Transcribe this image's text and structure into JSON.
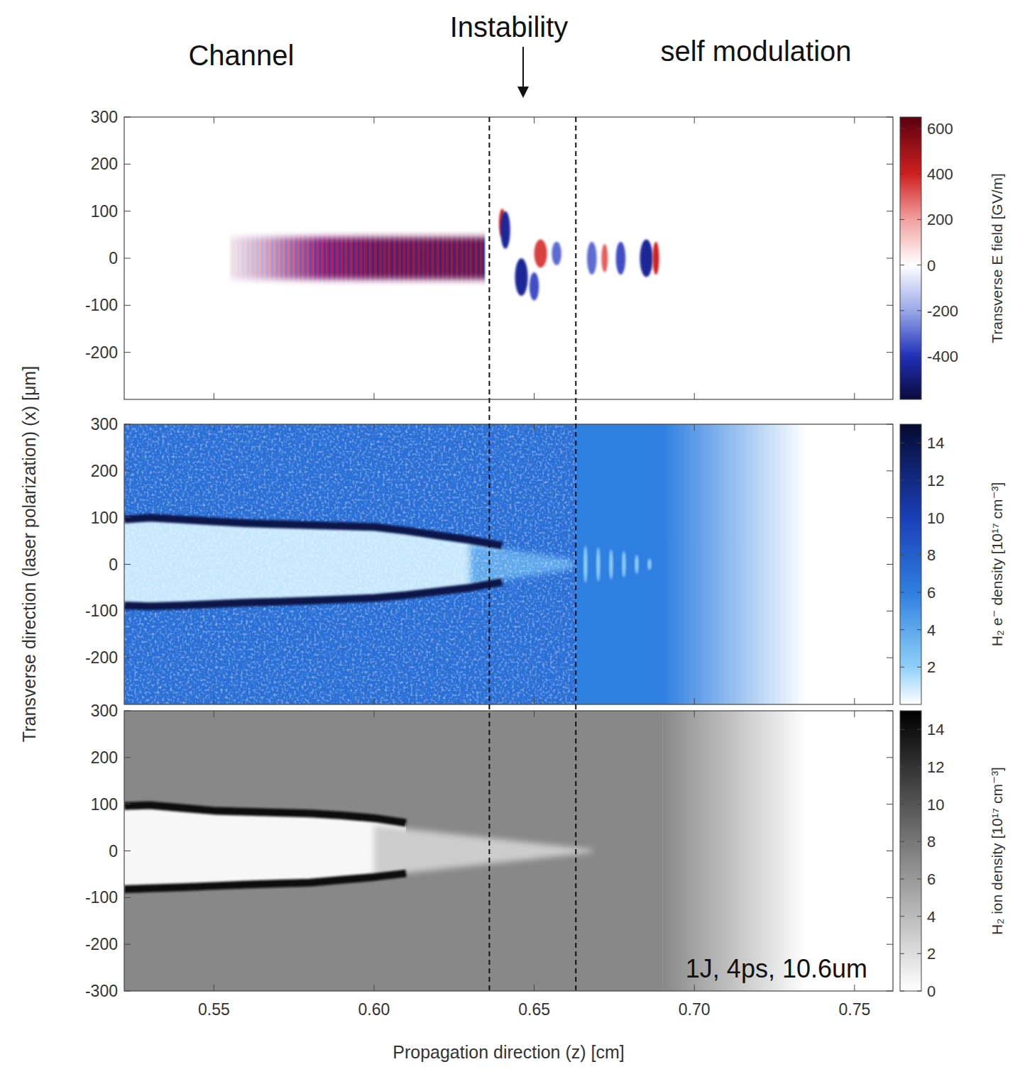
{
  "labels": {
    "channel": "Channel",
    "instability": "Instability",
    "self_modulation": "self modulation",
    "parameters": "1J, 4ps, 10.6um"
  },
  "xlabel": "Propagation direction (z) [cm]",
  "ylabel": "Transverse direction (laser polarization) (x) [μm]",
  "region_bounds": [
    0.636,
    0.663
  ],
  "chart_data": [
    {
      "type": "heatmap",
      "xlim": [
        0.522,
        0.762
      ],
      "ylim": [
        -300,
        300
      ],
      "xticks": [
        0.55,
        {
          "value": 0.6,
          "label": "0.60"
        },
        0.65,
        {
          "value": 0.7,
          "label": "0.70"
        },
        0.75
      ],
      "yticks": [
        300,
        200,
        100,
        0,
        -100,
        -200
      ],
      "tick_labels": "y",
      "colorbar": {
        "label": "Transverse E field [GV/m]",
        "range": [
          -590,
          650
        ],
        "ticks": [
          600,
          400,
          200,
          0,
          -200,
          -400
        ],
        "stops": [
          -590,
          -400,
          -200,
          0,
          200,
          400,
          650
        ],
        "colors": [
          "#0b0a3c",
          "#2030b8",
          "#9aa8e8",
          "#ffffff",
          "#f2a0a0",
          "#d02020",
          "#5a0010"
        ]
      },
      "background": 0,
      "channel_field": {
        "z": [
          0.555,
          0.57,
          0.585,
          0.6,
          0.636
        ],
        "amplitude": [
          60,
          250,
          420,
          480,
          500
        ],
        "halfwidth": 45,
        "period": 0.0015
      },
      "blobs": {
        "z": [
          0.64,
          0.641,
          0.646,
          0.65,
          0.652,
          0.657,
          0.668,
          0.672,
          0.677,
          0.685,
          0.688
        ],
        "x": [
          75,
          60,
          -40,
          -60,
          10,
          10,
          0,
          0,
          0,
          0,
          0
        ],
        "values": [
          400,
          -450,
          -450,
          -350,
          350,
          -300,
          -300,
          300,
          -350,
          -450,
          400
        ],
        "width": [
          0.002,
          0.003,
          0.004,
          0.003,
          0.004,
          0.003,
          0.003,
          0.002,
          0.003,
          0.004,
          0.002
        ],
        "height": [
          30,
          40,
          40,
          30,
          30,
          25,
          35,
          30,
          35,
          40,
          35
        ]
      }
    },
    {
      "type": "heatmap",
      "xlim": [
        0.522,
        0.762
      ],
      "ylim": [
        -300,
        300
      ],
      "xticks": [
        0.55,
        {
          "value": 0.6,
          "label": "0.60"
        },
        0.65,
        {
          "value": 0.7,
          "label": "0.70"
        },
        0.75
      ],
      "yticks": [
        300,
        200,
        100,
        0,
        -100,
        -200
      ],
      "tick_labels": "y",
      "colorbar": {
        "label": "H₂ e⁻ density [10¹⁷ cm⁻³]",
        "range": [
          0,
          15
        ],
        "ticks": [
          14,
          12,
          10,
          8,
          6,
          4,
          2
        ],
        "stops": [
          0,
          2,
          6,
          10,
          15
        ],
        "colors": [
          "#ffffff",
          "#8fd0f8",
          "#2f7fe0",
          "#1a3fb8",
          "#050a30"
        ]
      },
      "background": 7,
      "ramp": {
        "z": [
          0.663,
          0.69,
          0.735
        ],
        "values": [
          6,
          6,
          0
        ]
      },
      "channel": {
        "z": [
          0.522,
          0.53,
          0.54,
          0.55,
          0.56,
          0.57,
          0.58,
          0.59,
          0.6,
          0.61,
          0.62,
          0.63,
          0.64
        ],
        "upper": [
          96,
          100,
          96,
          92,
          88,
          86,
          84,
          82,
          80,
          72,
          62,
          52,
          40
        ],
        "lower": [
          -88,
          -90,
          -88,
          -85,
          -82,
          -80,
          -78,
          -75,
          -72,
          -66,
          -58,
          -50,
          -38
        ],
        "value": 1,
        "wall_value": 14
      },
      "cone": {
        "z": [
          0.63,
          0.662
        ],
        "halfwidth": [
          45,
          10
        ],
        "value": 4
      },
      "blobs": {
        "z": [
          0.666,
          0.67,
          0.674,
          0.678,
          0.682,
          0.686
        ],
        "x": [
          0,
          0,
          0,
          0,
          0,
          0
        ],
        "values": [
          2,
          2,
          2,
          2,
          2,
          2
        ],
        "width": [
          0.0012,
          0.0012,
          0.0012,
          0.0012,
          0.0012,
          0.0012
        ],
        "height": [
          40,
          36,
          32,
          28,
          20,
          12
        ]
      }
    },
    {
      "type": "heatmap",
      "xlim": [
        0.522,
        0.762
      ],
      "ylim": [
        -300,
        300
      ],
      "xticks": [
        0.55,
        {
          "value": 0.6,
          "label": "0.60"
        },
        0.65,
        {
          "value": 0.7,
          "label": "0.70"
        },
        0.75
      ],
      "yticks": [
        300,
        200,
        100,
        0,
        -100,
        -200,
        -300
      ],
      "tick_labels": true,
      "colorbar": {
        "label": "H₂ ion density [10¹⁷ cm⁻³]",
        "range": [
          0,
          15
        ],
        "ticks": [
          14,
          12,
          10,
          8,
          6,
          4,
          2,
          0
        ],
        "stops": [
          0,
          15
        ],
        "colors": [
          "#ffffff",
          "#000000"
        ]
      },
      "background": 7,
      "ramp": {
        "z": [
          0.69,
          0.735
        ],
        "values": [
          7,
          0
        ]
      },
      "channel": {
        "z": [
          0.522,
          0.53,
          0.54,
          0.55,
          0.56,
          0.57,
          0.58,
          0.59,
          0.6,
          0.61
        ],
        "upper": [
          96,
          98,
          92,
          86,
          84,
          82,
          80,
          76,
          70,
          60
        ],
        "lower": [
          -82,
          -80,
          -78,
          -75,
          -72,
          -70,
          -68,
          -62,
          -56,
          -48
        ],
        "value": 0.5,
        "wall_value": 14
      },
      "cone": {
        "z": [
          0.6,
          0.668
        ],
        "halfwidth": [
          55,
          3
        ],
        "value": 3
      }
    }
  ]
}
